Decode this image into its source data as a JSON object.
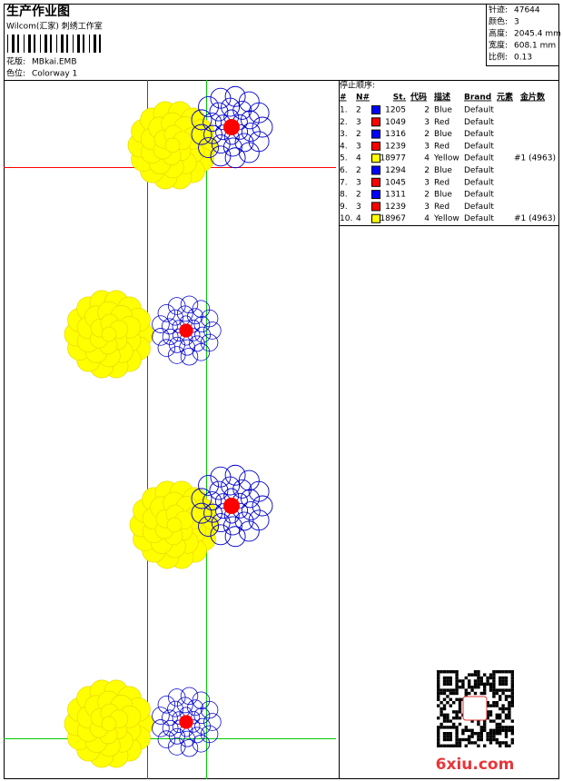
{
  "header": {
    "title": "生产作业图",
    "subtitle": "Wilcom(汇家) 刺绣工作室",
    "design_label": "花版:",
    "design": "MBkai.EMB",
    "colorway_label": "色位:",
    "colorway": "Colorway 1"
  },
  "info": [
    {
      "label": "针迹:",
      "value": "47644"
    },
    {
      "label": "颜色:",
      "value": "3"
    },
    {
      "label": "高度:",
      "value": "2045.4 mm"
    },
    {
      "label": "宽度:",
      "value": "608.1 mm"
    },
    {
      "label": "比例:",
      "value": "0.13"
    }
  ],
  "table": {
    "title": "停止顺序:",
    "columns": [
      "#",
      "N#",
      "St.",
      "代码",
      "描述",
      "Brand",
      "元素",
      "金片数"
    ],
    "rows": [
      {
        "index": "1.",
        "needle": 2,
        "color": "#0000ff",
        "stitches": 1205,
        "code": 2,
        "description": "Blue",
        "brand": "Default"
      },
      {
        "index": "2.",
        "needle": 3,
        "color": "#ff0000",
        "stitches": 1049,
        "code": 3,
        "description": "Red",
        "brand": "Default"
      },
      {
        "index": "3.",
        "needle": 2,
        "color": "#0000ff",
        "stitches": 1316,
        "code": 2,
        "description": "Blue",
        "brand": "Default"
      },
      {
        "index": "4.",
        "needle": 3,
        "color": "#ff0000",
        "stitches": 1239,
        "code": 3,
        "description": "Red",
        "brand": "Default"
      },
      {
        "index": "5.",
        "needle": 4,
        "color": "#ffff00",
        "stitches": 18977,
        "code": 4,
        "description": "Yellow",
        "brand": "Default",
        "sequins": "#1 (4963)"
      },
      {
        "index": "6.",
        "needle": 2,
        "color": "#0000ff",
        "stitches": 1294,
        "code": 2,
        "description": "Blue",
        "brand": "Default"
      },
      {
        "index": "7.",
        "needle": 3,
        "color": "#ff0000",
        "stitches": 1045,
        "code": 3,
        "description": "Red",
        "brand": "Default"
      },
      {
        "index": "8.",
        "needle": 2,
        "color": "#0000ff",
        "stitches": 1311,
        "code": 2,
        "description": "Blue",
        "brand": "Default"
      },
      {
        "index": "9.",
        "needle": 3,
        "color": "#ff0000",
        "stitches": 1239,
        "code": 3,
        "description": "Red",
        "brand": "Default"
      },
      {
        "index": "10.",
        "needle": 4,
        "color": "#ffff00",
        "stitches": 18967,
        "code": 4,
        "description": "Yellow",
        "brand": "Default",
        "sequins": "#1 (4963)"
      }
    ]
  },
  "watermark": "6xiu.com"
}
